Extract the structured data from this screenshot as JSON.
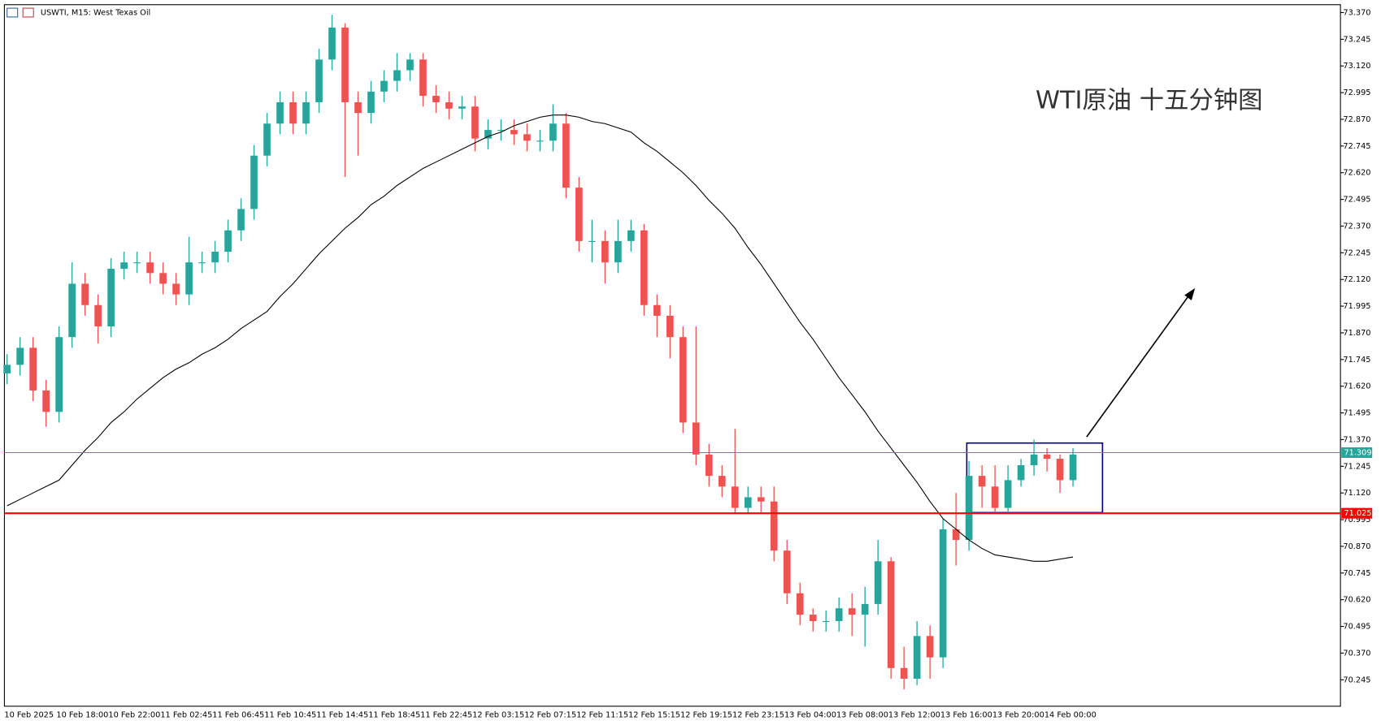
{
  "chart_data": {
    "type": "candlestick",
    "title": "USWTI, M15:  West Texas Oil",
    "annotation": "WTI原油 十五分钟图",
    "up_color": "#26a69a",
    "down_color": "#ef5350",
    "categories": [
      "10 Feb 2025",
      null,
      null,
      null,
      "10 Feb 18:00",
      null,
      null,
      null,
      "10 Feb 22:00",
      null,
      null,
      null,
      "11 Feb 02:45",
      null,
      null,
      null,
      "11 Feb 06:45",
      null,
      null,
      null,
      "11 Feb 10:45",
      null,
      null,
      null,
      "11 Feb 14:45",
      null,
      null,
      null,
      "11 Feb 18:45",
      null,
      null,
      null,
      "11 Feb 22:45",
      null,
      null,
      null,
      "12 Feb 03:15",
      null,
      null,
      null,
      "12 Feb 07:15",
      null,
      null,
      null,
      "12 Feb 11:15",
      null,
      null,
      null,
      "12 Feb 15:15",
      null,
      null,
      null,
      "12 Feb 19:15",
      null,
      null,
      null,
      "12 Feb 23:15",
      null,
      null,
      null,
      "13 Feb 04:00",
      null,
      null,
      null,
      "13 Feb 08:00",
      null,
      null,
      null,
      "13 Feb 12:00",
      null,
      null,
      null,
      "13 Feb 16:00",
      null,
      null,
      null,
      "13 Feb 20:00",
      null,
      null,
      null,
      "14 Feb 00:00",
      null,
      null
    ],
    "open": [
      71.68,
      71.72,
      71.8,
      71.6,
      71.5,
      71.85,
      72.1,
      72.0,
      71.9,
      72.17,
      72.2,
      72.2,
      72.15,
      72.1,
      72.05,
      72.2,
      72.2,
      72.25,
      72.35,
      72.45,
      72.7,
      72.85,
      72.95,
      72.85,
      72.95,
      73.15,
      73.3,
      72.95,
      72.9,
      73.0,
      73.05,
      73.1,
      73.15,
      72.98,
      72.95,
      72.92,
      72.93,
      72.78,
      72.82,
      72.82,
      72.8,
      72.77,
      72.77,
      72.85,
      72.55,
      72.3,
      72.3,
      72.2,
      72.3,
      72.35,
      72.0,
      71.95,
      71.85,
      71.45,
      71.3,
      71.2,
      71.15,
      71.05,
      71.1,
      71.08,
      70.85,
      70.65,
      70.55,
      70.52,
      70.52,
      70.58,
      70.55,
      70.6,
      70.8,
      70.3,
      70.25,
      70.45,
      70.35,
      70.95,
      70.9,
      71.2,
      71.15,
      71.05,
      71.18,
      71.25,
      71.3,
      71.28,
      71.18
    ],
    "high": [
      71.77,
      71.85,
      71.85,
      71.65,
      71.9,
      72.2,
      72.15,
      72.05,
      72.22,
      72.25,
      72.25,
      72.25,
      72.2,
      72.15,
      72.32,
      72.25,
      72.3,
      72.4,
      72.5,
      72.75,
      72.9,
      73.0,
      73.0,
      73.0,
      73.2,
      73.36,
      73.32,
      73.0,
      73.05,
      73.1,
      73.18,
      73.18,
      73.18,
      73.03,
      73.0,
      72.98,
      72.98,
      72.87,
      72.87,
      72.87,
      72.85,
      72.82,
      72.94,
      72.9,
      72.6,
      72.4,
      72.35,
      72.4,
      72.4,
      72.38,
      72.05,
      72.0,
      71.9,
      71.9,
      71.35,
      71.25,
      71.42,
      71.15,
      71.15,
      71.15,
      70.9,
      70.7,
      70.58,
      70.57,
      70.63,
      70.65,
      70.68,
      70.9,
      70.82,
      70.4,
      70.52,
      70.5,
      71.0,
      71.12,
      71.27,
      71.25,
      71.25,
      71.25,
      71.28,
      71.37,
      71.33,
      71.3,
      71.33
    ],
    "low": [
      71.63,
      71.67,
      71.55,
      71.43,
      71.45,
      71.8,
      71.95,
      71.82,
      71.85,
      72.12,
      72.15,
      72.1,
      72.05,
      72.0,
      72.0,
      72.15,
      72.15,
      72.2,
      72.3,
      72.4,
      72.65,
      72.8,
      72.8,
      72.8,
      72.9,
      73.1,
      72.6,
      72.7,
      72.85,
      72.95,
      73.0,
      73.05,
      72.93,
      72.9,
      72.87,
      72.87,
      72.72,
      72.73,
      72.77,
      72.75,
      72.72,
      72.72,
      72.72,
      72.5,
      72.25,
      72.2,
      72.1,
      72.15,
      72.25,
      71.95,
      71.85,
      71.75,
      71.4,
      71.25,
      71.15,
      71.1,
      71.02,
      71.02,
      71.03,
      70.8,
      70.6,
      70.5,
      70.47,
      70.47,
      70.47,
      70.45,
      70.4,
      70.55,
      70.25,
      70.2,
      70.22,
      70.25,
      70.3,
      70.78,
      70.85,
      71.05,
      71.02,
      71.02,
      71.15,
      71.2,
      71.22,
      71.12,
      71.15
    ],
    "close": [
      71.72,
      71.8,
      71.6,
      71.5,
      71.85,
      72.1,
      72.0,
      71.9,
      72.17,
      72.2,
      72.2,
      72.15,
      72.1,
      72.05,
      72.2,
      72.2,
      72.25,
      72.35,
      72.45,
      72.7,
      72.85,
      72.95,
      72.85,
      72.95,
      73.15,
      73.3,
      72.95,
      72.9,
      73.0,
      73.05,
      73.1,
      73.15,
      72.98,
      72.95,
      72.92,
      72.93,
      72.78,
      72.82,
      72.82,
      72.8,
      72.77,
      72.77,
      72.85,
      72.55,
      72.3,
      72.3,
      72.2,
      72.3,
      72.35,
      72.0,
      71.95,
      71.85,
      71.45,
      71.3,
      71.2,
      71.15,
      71.05,
      71.1,
      71.08,
      70.85,
      70.65,
      70.55,
      70.52,
      70.52,
      70.58,
      70.55,
      70.6,
      70.8,
      70.3,
      70.25,
      70.45,
      70.35,
      70.95,
      70.9,
      71.2,
      71.15,
      71.05,
      71.18,
      71.25,
      71.3,
      71.28,
      71.18,
      71.3
    ],
    "ma": {
      "color": "#000000",
      "values": [
        71.06,
        71.09,
        71.12,
        71.15,
        71.18,
        71.25,
        71.32,
        71.38,
        71.45,
        71.5,
        71.56,
        71.61,
        71.66,
        71.7,
        71.73,
        71.77,
        71.8,
        71.84,
        71.89,
        71.93,
        71.97,
        72.04,
        72.1,
        72.17,
        72.24,
        72.3,
        72.36,
        72.41,
        72.47,
        72.51,
        72.56,
        72.6,
        72.64,
        72.67,
        72.7,
        72.73,
        72.76,
        72.79,
        72.81,
        72.84,
        72.86,
        72.88,
        72.89,
        72.89,
        72.88,
        72.86,
        72.85,
        72.83,
        72.81,
        72.76,
        72.72,
        72.67,
        72.62,
        72.56,
        72.49,
        72.43,
        72.36,
        72.27,
        72.19,
        72.1,
        72.01,
        71.92,
        71.84,
        71.75,
        71.66,
        71.58,
        71.5,
        71.41,
        71.33,
        71.25,
        71.17,
        71.08,
        71.0,
        70.95,
        70.9,
        70.86,
        70.83,
        70.82,
        70.81,
        70.8,
        70.8,
        70.81,
        70.82
      ]
    },
    "hlines": [
      {
        "value": 71.309,
        "color": "#26a69a"
      },
      {
        "value": 71.025,
        "color": "#ff0000"
      }
    ],
    "ylim": [
      70.121,
      73.407
    ],
    "yticks": [
      70.245,
      {
        "value": 70.37,
        "label": "70.370"
      },
      70.495,
      {
        "value": 70.62,
        "label": "70.620"
      },
      70.745,
      {
        "value": 70.87,
        "label": "70.870"
      },
      70.995,
      {
        "value": 71.12,
        "label": "71.120"
      },
      71.245,
      {
        "value": 71.37,
        "label": "71.370"
      },
      71.495,
      {
        "value": 71.62,
        "label": "71.620"
      },
      71.745,
      {
        "value": 71.87,
        "label": "71.870"
      },
      71.995,
      {
        "value": 72.12,
        "label": "72.120"
      },
      72.245,
      {
        "value": 72.37,
        "label": "72.370"
      },
      72.495,
      {
        "value": 72.62,
        "label": "72.620"
      },
      72.745,
      {
        "value": 72.87,
        "label": "72.870"
      },
      72.995,
      {
        "value": 73.12,
        "label": "73.120"
      },
      73.245,
      {
        "value": 73.37,
        "label": "73.370"
      }
    ]
  }
}
